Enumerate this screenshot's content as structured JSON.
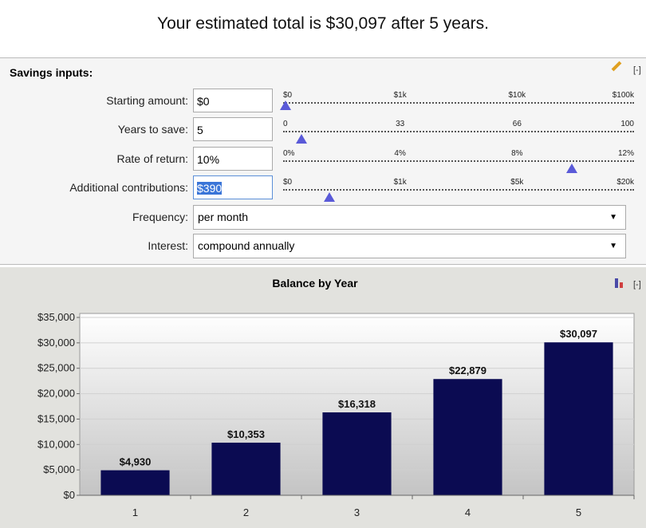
{
  "header": {
    "title": "Your estimated total is $30,097 after 5 years."
  },
  "inputs": {
    "title": "Savings inputs:",
    "collapse": "[-]",
    "rows": [
      {
        "label": "Starting amount:",
        "value": "$0",
        "scale": [
          "$0",
          "$1k",
          "$10k",
          "$100k"
        ]
      },
      {
        "label": "Years to save:",
        "value": "5",
        "scale": [
          "0",
          "33",
          "66",
          "100"
        ]
      },
      {
        "label": "Rate of return:",
        "value": "10%",
        "scale": [
          "0%",
          "4%",
          "8%",
          "12%"
        ]
      },
      {
        "label": "Additional contributions:",
        "value": "$390",
        "scale": [
          "$0",
          "$1k",
          "$5k",
          "$20k"
        ]
      }
    ],
    "selects": [
      {
        "label": "Frequency:",
        "value": "per month"
      },
      {
        "label": "Interest:",
        "value": "compound annually"
      }
    ]
  },
  "chart_data": {
    "type": "bar",
    "title": "Balance by Year",
    "collapse": "[-]",
    "categories": [
      "1",
      "2",
      "3",
      "4",
      "5"
    ],
    "values": [
      4930,
      10353,
      16318,
      22879,
      30097
    ],
    "value_labels": [
      "$4,930",
      "$10,353",
      "$16,318",
      "$22,879",
      "$30,097"
    ],
    "color": "#0b0b52",
    "ylim": [
      0,
      35000
    ],
    "yticks": [
      {
        "value": 0,
        "label": "$0"
      },
      {
        "value": 5000,
        "label": "$5,000"
      },
      {
        "value": 10000,
        "label": "$10,000"
      },
      {
        "value": 15000,
        "label": "$15,000"
      },
      {
        "value": 20000,
        "label": "$20,000"
      },
      {
        "value": 25000,
        "label": "$25,000"
      },
      {
        "value": 30000,
        "label": "$30,000"
      },
      {
        "value": 35000,
        "label": "$35,000"
      }
    ],
    "grid": true
  }
}
